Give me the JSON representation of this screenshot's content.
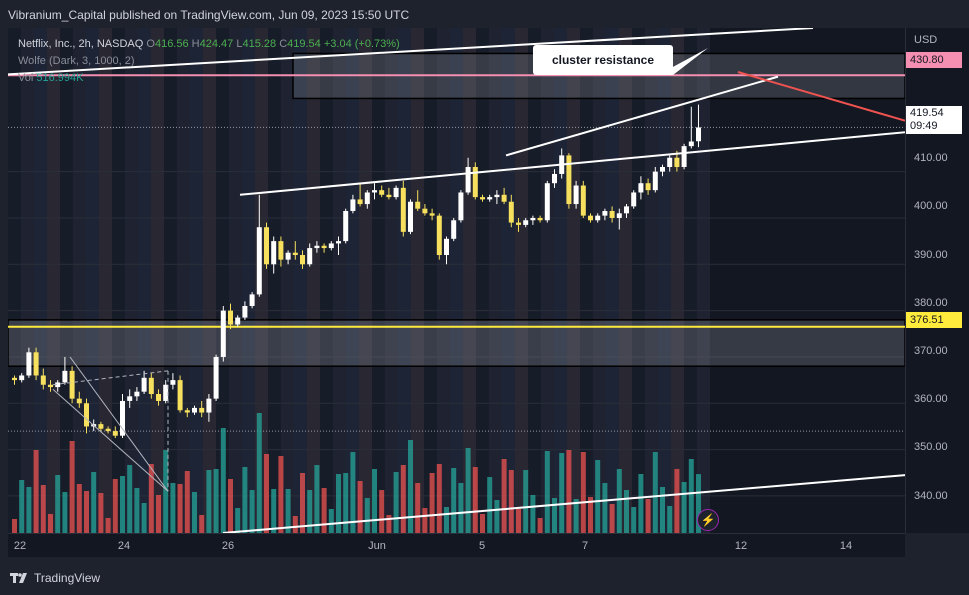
{
  "header": {
    "text": "Vibranium_Capital published on TradingView.com, Jun 09, 2023 15:50 UTC"
  },
  "legend": {
    "symbol": "Netflix, Inc., 2h, NASDAQ",
    "o_label": "O",
    "o": "416.56",
    "h_label": "H",
    "h": "424.47",
    "l_label": "L",
    "l": "415.28",
    "c_label": "C",
    "c": "419.54",
    "change": "+3.04 (+0.73%)",
    "indicator": "Wolfe (Dark, 3, 1000, 2)",
    "vol_label": "Vol",
    "vol": "516.994K"
  },
  "annotation": {
    "text": "cluster resistance"
  },
  "price_axis": {
    "currency": "USD",
    "ticks": [
      "410.00",
      "400.00",
      "390.00",
      "380.00",
      "370.00",
      "360.00",
      "350.00",
      "340.00"
    ],
    "tags": {
      "resistance": "430.80",
      "last_price": "419.54",
      "countdown": "09:49",
      "support": "376.51"
    }
  },
  "time_axis": {
    "labels": [
      "22",
      "24",
      "26",
      "Jun",
      "5",
      "7",
      "12",
      "14"
    ]
  },
  "footer": {
    "brand": "TradingView"
  },
  "colors": {
    "up": "#ffffff",
    "down": "#f6e05e",
    "vol_up": "#26a69a",
    "vol_down": "#ef5350",
    "resistance_line": "#f48fb1",
    "support_line": "#ffeb3b"
  },
  "chart_data": {
    "type": "candlestick",
    "symbol": "Netflix, Inc.",
    "interval": "2h",
    "ylim": [
      332,
      441
    ],
    "candles": [
      {
        "o": 365.5,
        "h": 366.0,
        "l": 364.0,
        "c": 365.0
      },
      {
        "o": 365.0,
        "h": 366.5,
        "l": 364.5,
        "c": 366.0
      },
      {
        "o": 366.0,
        "h": 372.0,
        "l": 365.5,
        "c": 371.0
      },
      {
        "o": 371.0,
        "h": 372.0,
        "l": 365.0,
        "c": 366.0
      },
      {
        "o": 366.0,
        "h": 367.5,
        "l": 363.0,
        "c": 364.0
      },
      {
        "o": 364.0,
        "h": 365.0,
        "l": 362.5,
        "c": 363.5
      },
      {
        "o": 363.5,
        "h": 365.0,
        "l": 362.5,
        "c": 364.5
      },
      {
        "o": 364.5,
        "h": 370.0,
        "l": 364.0,
        "c": 367.0
      },
      {
        "o": 367.0,
        "h": 368.0,
        "l": 360.0,
        "c": 361.0
      },
      {
        "o": 361.0,
        "h": 362.5,
        "l": 359.0,
        "c": 360.0
      },
      {
        "o": 360.0,
        "h": 361.0,
        "l": 353.5,
        "c": 355.0
      },
      {
        "o": 355.0,
        "h": 356.5,
        "l": 354.0,
        "c": 355.5
      },
      {
        "o": 355.5,
        "h": 356.0,
        "l": 354.0,
        "c": 354.5
      },
      {
        "o": 354.5,
        "h": 355.0,
        "l": 353.5,
        "c": 354.0
      },
      {
        "o": 354.0,
        "h": 355.0,
        "l": 352.5,
        "c": 353.0
      },
      {
        "o": 353.0,
        "h": 362.0,
        "l": 352.5,
        "c": 360.5
      },
      {
        "o": 360.5,
        "h": 363.0,
        "l": 359.0,
        "c": 361.5
      },
      {
        "o": 361.5,
        "h": 363.5,
        "l": 360.5,
        "c": 362.5
      },
      {
        "o": 362.5,
        "h": 367.0,
        "l": 362.0,
        "c": 365.5
      },
      {
        "o": 365.5,
        "h": 366.5,
        "l": 361.0,
        "c": 362.0
      },
      {
        "o": 362.0,
        "h": 363.0,
        "l": 359.5,
        "c": 360.5
      },
      {
        "o": 360.5,
        "h": 365.0,
        "l": 360.0,
        "c": 364.0
      },
      {
        "o": 364.0,
        "h": 366.5,
        "l": 363.0,
        "c": 365.0
      },
      {
        "o": 365.0,
        "h": 366.0,
        "l": 358.0,
        "c": 358.5
      },
      {
        "o": 358.5,
        "h": 359.0,
        "l": 357.0,
        "c": 358.0
      },
      {
        "o": 358.0,
        "h": 359.5,
        "l": 357.5,
        "c": 359.0
      },
      {
        "o": 359.0,
        "h": 360.5,
        "l": 357.0,
        "c": 358.0
      },
      {
        "o": 358.0,
        "h": 362.0,
        "l": 356.0,
        "c": 361.0
      },
      {
        "o": 361.0,
        "h": 370.5,
        "l": 360.5,
        "c": 370.0
      },
      {
        "o": 370.0,
        "h": 381.0,
        "l": 369.0,
        "c": 380.0
      },
      {
        "o": 380.0,
        "h": 381.5,
        "l": 376.0,
        "c": 377.0
      },
      {
        "o": 377.0,
        "h": 379.0,
        "l": 376.5,
        "c": 378.5
      },
      {
        "o": 378.5,
        "h": 382.0,
        "l": 378.0,
        "c": 381.0
      },
      {
        "o": 381.0,
        "h": 384.0,
        "l": 380.5,
        "c": 383.5
      },
      {
        "o": 383.5,
        "h": 405.0,
        "l": 383.0,
        "c": 398.0
      },
      {
        "o": 398.0,
        "h": 399.0,
        "l": 389.0,
        "c": 390.0
      },
      {
        "o": 390.0,
        "h": 396.0,
        "l": 388.0,
        "c": 395.0
      },
      {
        "o": 395.0,
        "h": 396.0,
        "l": 389.5,
        "c": 391.0
      },
      {
        "o": 391.0,
        "h": 393.0,
        "l": 390.0,
        "c": 392.5
      },
      {
        "o": 392.5,
        "h": 395.0,
        "l": 391.0,
        "c": 392.0
      },
      {
        "o": 392.0,
        "h": 393.0,
        "l": 389.0,
        "c": 390.0
      },
      {
        "o": 390.0,
        "h": 394.5,
        "l": 389.5,
        "c": 393.5
      },
      {
        "o": 393.5,
        "h": 395.0,
        "l": 392.5,
        "c": 394.0
      },
      {
        "o": 394.0,
        "h": 394.5,
        "l": 392.5,
        "c": 393.5
      },
      {
        "o": 393.5,
        "h": 395.0,
        "l": 393.0,
        "c": 394.5
      },
      {
        "o": 394.5,
        "h": 396.0,
        "l": 392.0,
        "c": 395.0
      },
      {
        "o": 395.0,
        "h": 402.0,
        "l": 394.5,
        "c": 401.5
      },
      {
        "o": 401.5,
        "h": 405.0,
        "l": 401.0,
        "c": 404.0
      },
      {
        "o": 404.0,
        "h": 407.5,
        "l": 402.5,
        "c": 403.0
      },
      {
        "o": 403.0,
        "h": 406.0,
        "l": 402.0,
        "c": 405.5
      },
      {
        "o": 405.5,
        "h": 407.5,
        "l": 404.0,
        "c": 406.0
      },
      {
        "o": 406.0,
        "h": 407.0,
        "l": 404.5,
        "c": 405.0
      },
      {
        "o": 405.0,
        "h": 406.5,
        "l": 404.0,
        "c": 404.5
      },
      {
        "o": 404.5,
        "h": 407.0,
        "l": 404.0,
        "c": 406.5
      },
      {
        "o": 406.5,
        "h": 408.0,
        "l": 396.0,
        "c": 397.0
      },
      {
        "o": 397.0,
        "h": 404.0,
        "l": 396.5,
        "c": 403.5
      },
      {
        "o": 403.5,
        "h": 406.0,
        "l": 401.5,
        "c": 402.0
      },
      {
        "o": 402.0,
        "h": 403.0,
        "l": 400.5,
        "c": 401.0
      },
      {
        "o": 401.0,
        "h": 402.0,
        "l": 399.5,
        "c": 400.5
      },
      {
        "o": 400.5,
        "h": 401.0,
        "l": 391.0,
        "c": 392.0
      },
      {
        "o": 392.0,
        "h": 396.0,
        "l": 390.0,
        "c": 395.5
      },
      {
        "o": 395.5,
        "h": 400.0,
        "l": 395.0,
        "c": 399.5
      },
      {
        "o": 399.5,
        "h": 406.0,
        "l": 399.0,
        "c": 405.5
      },
      {
        "o": 405.5,
        "h": 413.0,
        "l": 405.0,
        "c": 411.0
      },
      {
        "o": 411.0,
        "h": 412.0,
        "l": 404.0,
        "c": 404.5
      },
      {
        "o": 404.5,
        "h": 405.0,
        "l": 403.5,
        "c": 404.0
      },
      {
        "o": 404.0,
        "h": 405.0,
        "l": 403.5,
        "c": 404.5
      },
      {
        "o": 404.5,
        "h": 406.0,
        "l": 403.0,
        "c": 405.0
      },
      {
        "o": 405.0,
        "h": 406.5,
        "l": 403.0,
        "c": 403.5
      },
      {
        "o": 403.5,
        "h": 405.0,
        "l": 398.0,
        "c": 399.0
      },
      {
        "o": 399.0,
        "h": 400.0,
        "l": 397.0,
        "c": 398.5
      },
      {
        "o": 398.5,
        "h": 400.0,
        "l": 398.0,
        "c": 399.5
      },
      {
        "o": 399.5,
        "h": 400.5,
        "l": 398.5,
        "c": 400.0
      },
      {
        "o": 400.0,
        "h": 400.5,
        "l": 399.0,
        "c": 399.5
      },
      {
        "o": 399.5,
        "h": 408.0,
        "l": 399.0,
        "c": 407.5
      },
      {
        "o": 407.5,
        "h": 410.5,
        "l": 406.5,
        "c": 409.5
      },
      {
        "o": 409.5,
        "h": 415.0,
        "l": 408.5,
        "c": 413.5
      },
      {
        "o": 413.5,
        "h": 414.0,
        "l": 402.0,
        "c": 403.0
      },
      {
        "o": 403.0,
        "h": 408.0,
        "l": 402.0,
        "c": 407.0
      },
      {
        "o": 407.0,
        "h": 408.0,
        "l": 400.0,
        "c": 400.5
      },
      {
        "o": 400.5,
        "h": 401.0,
        "l": 399.0,
        "c": 399.5
      },
      {
        "o": 399.5,
        "h": 401.0,
        "l": 399.0,
        "c": 400.5
      },
      {
        "o": 400.5,
        "h": 402.0,
        "l": 399.5,
        "c": 401.5
      },
      {
        "o": 401.5,
        "h": 402.5,
        "l": 399.0,
        "c": 400.0
      },
      {
        "o": 400.0,
        "h": 402.0,
        "l": 397.5,
        "c": 401.0
      },
      {
        "o": 401.0,
        "h": 403.0,
        "l": 400.0,
        "c": 402.5
      },
      {
        "o": 402.5,
        "h": 406.0,
        "l": 402.0,
        "c": 405.5
      },
      {
        "o": 405.5,
        "h": 409.0,
        "l": 404.0,
        "c": 407.5
      },
      {
        "o": 407.5,
        "h": 408.5,
        "l": 405.0,
        "c": 406.0
      },
      {
        "o": 406.0,
        "h": 411.0,
        "l": 405.5,
        "c": 410.0
      },
      {
        "o": 410.0,
        "h": 411.5,
        "l": 409.0,
        "c": 411.0
      },
      {
        "o": 411.0,
        "h": 413.5,
        "l": 410.0,
        "c": 413.0
      },
      {
        "o": 413.0,
        "h": 414.5,
        "l": 410.0,
        "c": 411.0
      },
      {
        "o": 411.0,
        "h": 416.0,
        "l": 410.5,
        "c": 415.5
      },
      {
        "o": 415.5,
        "h": 424.0,
        "l": 415.0,
        "c": 416.5
      },
      {
        "o": 416.56,
        "h": 424.47,
        "l": 415.28,
        "c": 419.54
      }
    ]
  }
}
